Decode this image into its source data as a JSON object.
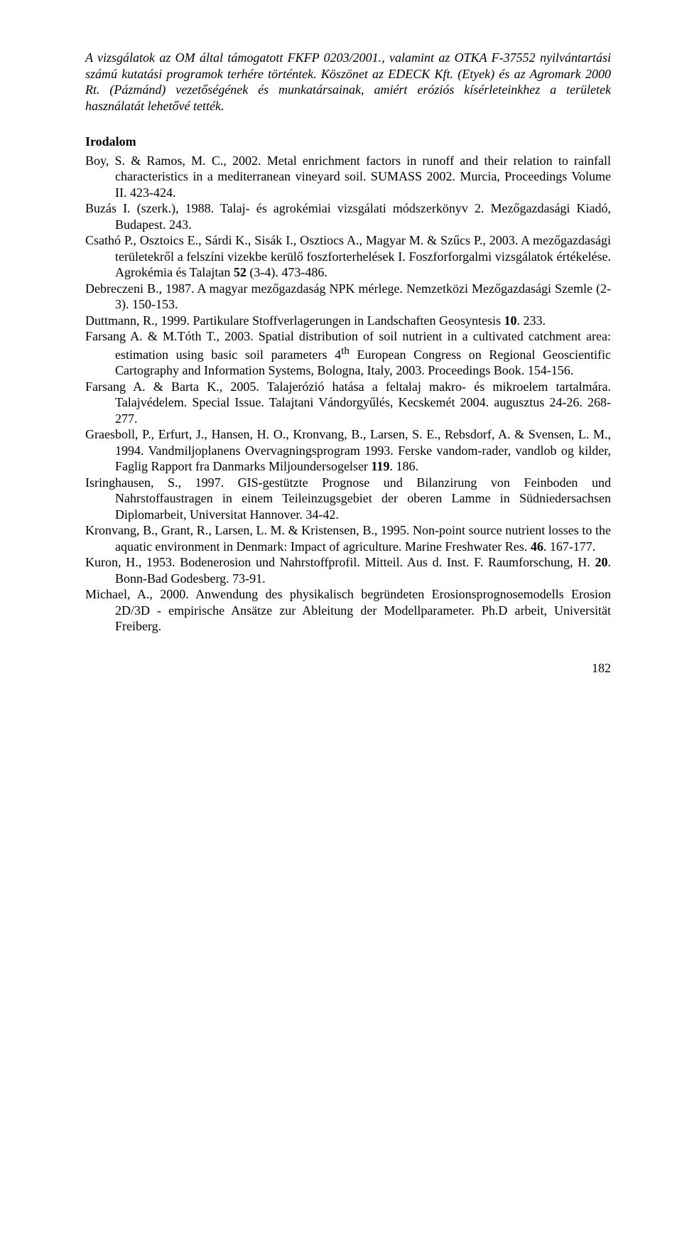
{
  "intro": "A vizsgálatok az OM által támogatott FKFP 0203/2001., valamint az OTKA F-37552 nyilvántartási számú kutatási programok terhére történtek. Köszönet az EDECK Kft. (Etyek) és az Agromark 2000 Rt. (Pázmánd) vezetőségének és munkatársainak, amiért eróziós kísérleteinkhez a területek használatát lehetővé tették.",
  "sectionHeading": "Irodalom",
  "references": [
    "Boy, S. & Ramos, M. C., 2002. Metal enrichment factors in runoff and their relation to rainfall characteristics in a mediterranean vineyard soil. SUMASS 2002. Murcia, Proceedings Volume II. 423-424.",
    "Buzás I. (szerk.), 1988. Talaj- és agrokémiai vizsgálati módszerkönyv 2. Mezőgazdasági Kiadó, Budapest. 243.",
    "Csathó P., Osztoics E., Sárdi K., Sisák I., Osztiocs A., Magyar M. & Szűcs P., 2003. A mezőgazdasági területekről a felszíni vizekbe kerülő foszforterhelések I. Foszforforgalmi vizsgálatok értékelése. Agrokémia és Talajtan 52 (3-4). 473-486.",
    "Debreczeni B., 1987. A magyar mezőgazdaság NPK mérlege. Nemzetközi Mezőgazdasági Szemle (2-3). 150-153.",
    "Duttmann, R., 1999. Partikulare Stoffverlagerungen in Landschaften Geosyntesis 10. 233.",
    "Farsang A. & M.Tóth T., 2003. Spatial distribution of soil nutrient in a cultivated catchment area: estimation using basic soil parameters 4th European Congress on Regional Geoscientific Cartography and Information Systems, Bologna, Italy, 2003. Proceedings Book. 154-156.",
    "Farsang A. & Barta K., 2005. Talajerózió hatása a feltalaj makro- és mikroelem tartalmára. Talajvédelem. Special Issue. Talajtani Vándorgyűlés, Kecskemét 2004. augusztus 24-26. 268-277.",
    "Graesboll, P., Erfurt, J., Hansen, H. O., Kronvang, B., Larsen, S. E., Rebsdorf, A. & Svensen, L. M., 1994. Vandmiljoplanens Overvagningsprogram 1993. Ferske vandom-rader, vandlob og kilder, Faglig Rapport fra Danmarks Miljoundersogelser 119. 186.",
    "Isringhausen, S., 1997. GIS-gestützte Prognose und Bilanzirung von Feinboden und Nahrstoffaustragen in einem Teileinzugsgebiet der oberen Lamme in Südniedersachsen Diplomarbeit, Universitat Hannover. 34-42.",
    "Kronvang, B., Grant, R., Larsen, L. M. & Kristensen, B., 1995. Non-point source nutrient losses to the aquatic environment in Denmark: Impact of agriculture. Marine Freshwater Res. 46. 167-177.",
    "Kuron, H., 1953. Bodenerosion und Nahrstoffprofil. Mitteil. Aus d. Inst. F. Raumforschung, H. 20. Bonn-Bad Godesberg. 73-91.",
    "Michael, A., 2000. Anwendung des physikalisch begründeten Erosionsprognosemodells Erosion 2D/3D - empirische Ansätze zur Ableitung der Modellparameter. Ph.D arbeit, Universität Freiberg."
  ],
  "pageNumber": "182"
}
